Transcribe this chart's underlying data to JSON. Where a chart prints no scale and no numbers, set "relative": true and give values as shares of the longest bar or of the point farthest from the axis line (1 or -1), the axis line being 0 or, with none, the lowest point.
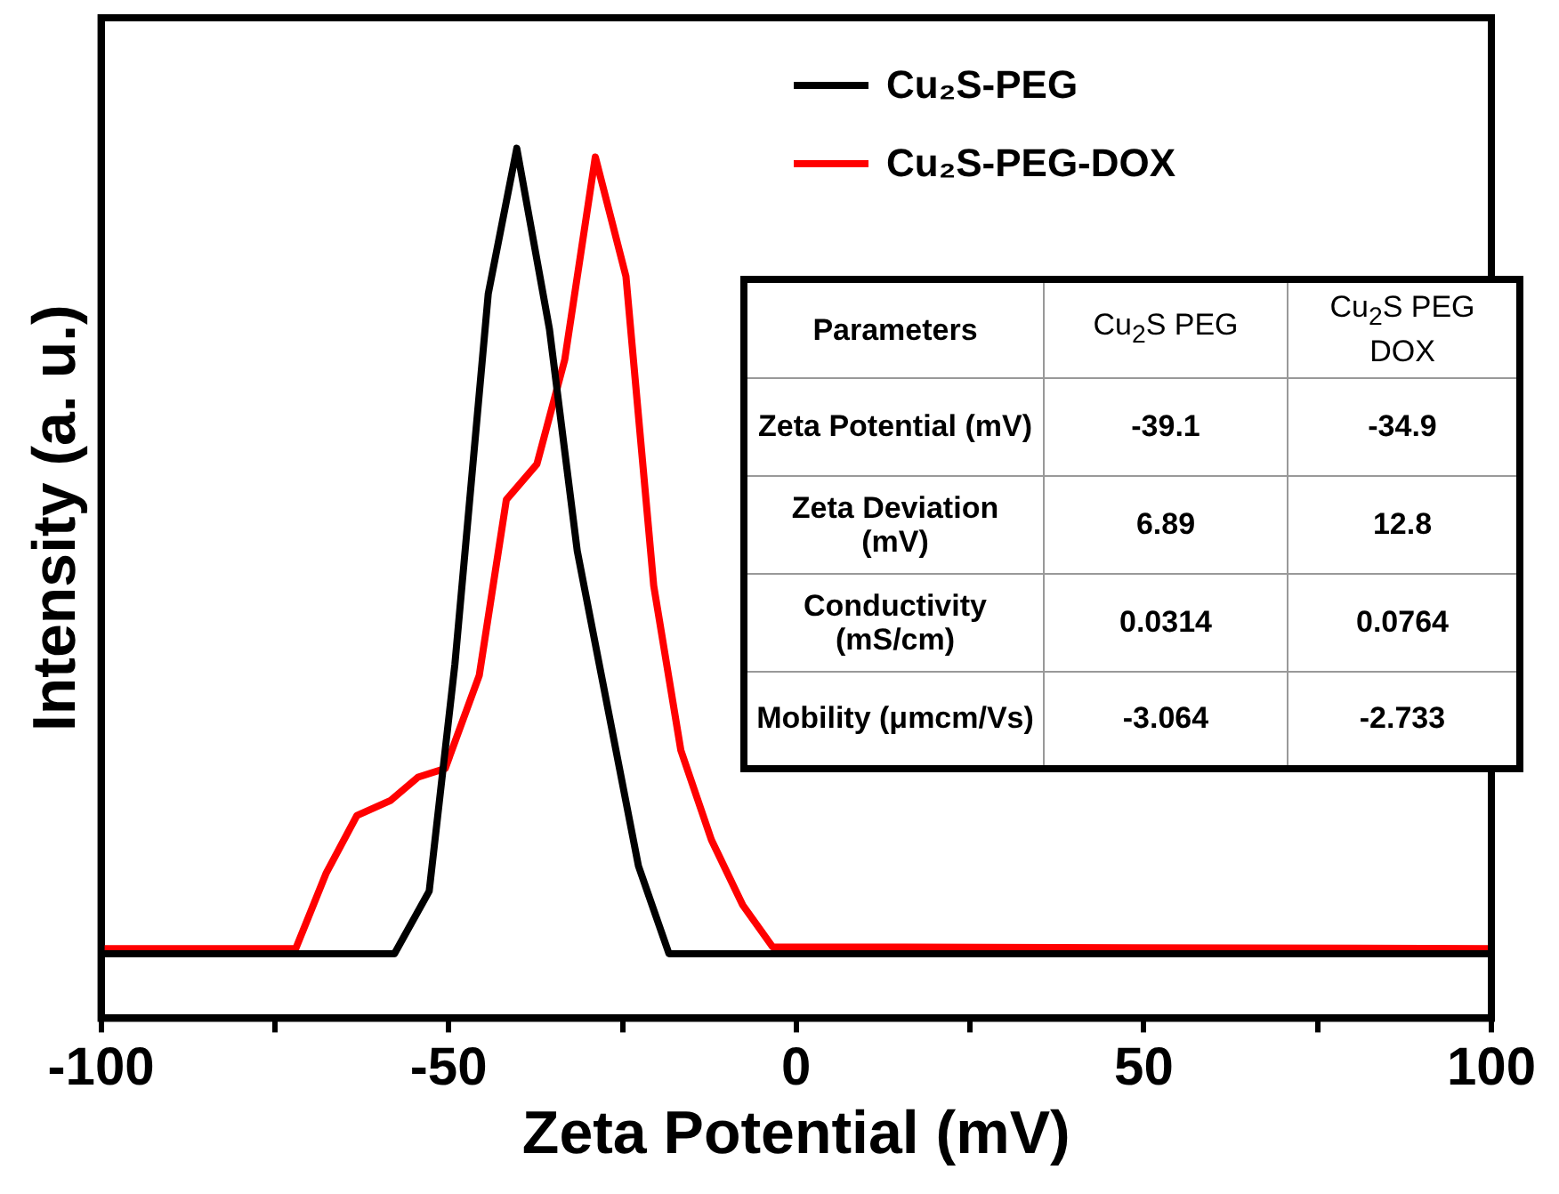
{
  "chart_data": {
    "type": "line",
    "xlabel": "Zeta Potential (mV)",
    "ylabel": "Intensity (a. u.)",
    "relative": true,
    "xlim": [
      -100,
      100
    ],
    "xticks": [
      -100,
      {
        "value": -75,
        "label": null
      },
      -50,
      {
        "value": -25,
        "label": null
      },
      0,
      {
        "value": 25,
        "label": null
      },
      50,
      {
        "value": 75,
        "label": null
      },
      100
    ],
    "grid": false,
    "legend": "top right",
    "marker": "none",
    "line_style": "solid",
    "series": [
      {
        "name": "Cu₂S-PEG",
        "color": "#000000",
        "x": [
          -100,
          -57.8,
          -52.8,
          -49.1,
          -44.3,
          -40.2,
          -35.5,
          -31.5,
          -22.7,
          -18.3,
          100
        ],
        "values": [
          0.074,
          0.074,
          0.146,
          0.407,
          0.833,
          1,
          0.792,
          0.537,
          0.175,
          0.074,
          0.074
        ]
      },
      {
        "name": "Cu₂S-PEG-DOX",
        "color": "#ff0000",
        "x": [
          -100,
          -72.0,
          -67.6,
          -63.2,
          -58.4,
          -54.4,
          -50.5,
          -45.6,
          -41.7,
          -37.3,
          -33.3,
          -28.9,
          -24.5,
          -20.5,
          -16.6,
          -12.2,
          -7.7,
          -3.4,
          100
        ],
        "values": [
          0.08,
          0.08,
          0.167,
          0.233,
          0.25,
          0.277,
          0.287,
          0.394,
          0.596,
          0.637,
          0.757,
          0.99,
          0.853,
          0.497,
          0.308,
          0.205,
          0.13,
          0.082,
          0.08
        ]
      }
    ],
    "annotations": [
      "Parameters",
      "Cu$_{2}$S PEG",
      "Cu$_{2}$S PEG DOX",
      "Zeta Potential (mV)",
      "-39.1",
      "-34.9",
      "Zeta Deviation (mV)",
      "6.89",
      "12.8",
      "Conductivity (mS/cm)",
      "0.0314",
      "0.0764",
      "Mobility (μmcm/Vs)",
      "-3.064",
      "-2.733"
    ]
  }
}
